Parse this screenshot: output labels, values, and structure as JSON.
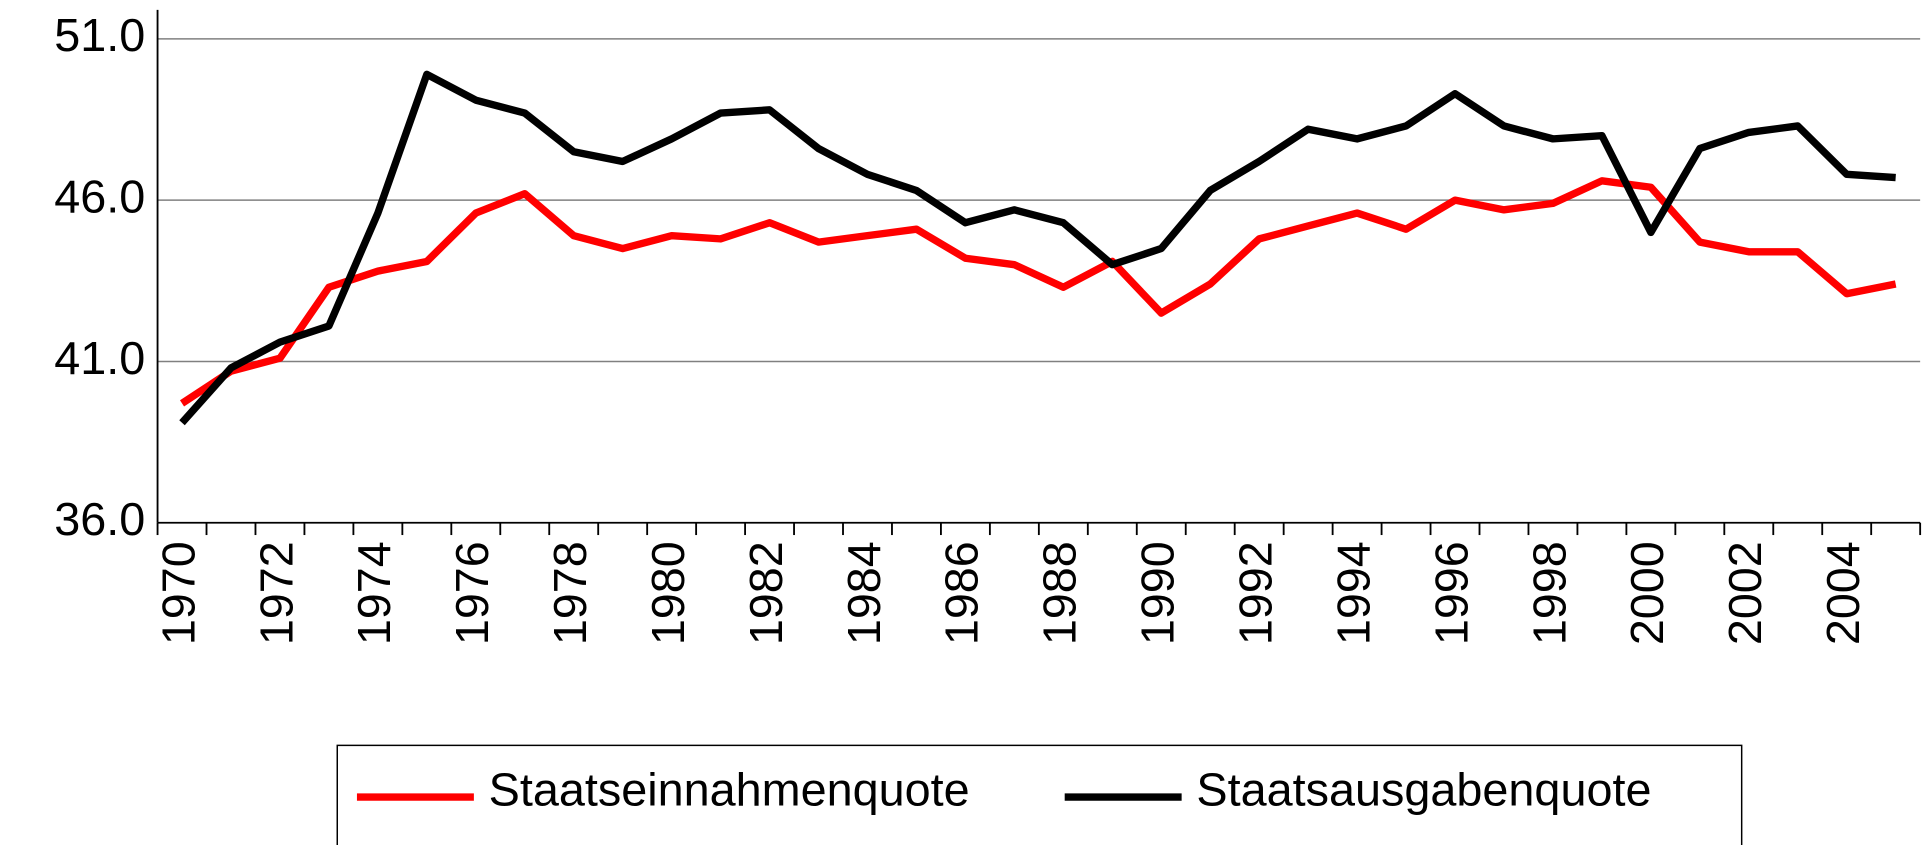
{
  "chart_data": {
    "type": "line",
    "categories": [
      "1970",
      null,
      "1972",
      null,
      "1974",
      null,
      "1976",
      null,
      "1978",
      null,
      "1980",
      null,
      "1982",
      null,
      "1984",
      null,
      "1986",
      null,
      "1988",
      null,
      "1990",
      null,
      "1992",
      null,
      "1994",
      null,
      "1996",
      null,
      "1998",
      null,
      "2000",
      null,
      "2002",
      null,
      "2004",
      null
    ],
    "series": [
      {
        "name": "Staatseinnahmenquote",
        "color": "#ff0000",
        "values": [
          39.7,
          40.7,
          41.1,
          43.3,
          43.8,
          44.1,
          45.6,
          46.2,
          44.9,
          44.5,
          44.9,
          44.8,
          45.3,
          44.7,
          44.9,
          45.1,
          44.2,
          44.0,
          43.3,
          44.1,
          42.5,
          43.4,
          44.8,
          45.2,
          45.6,
          45.1,
          46.0,
          45.7,
          45.9,
          46.6,
          46.4,
          44.7,
          44.4,
          44.4,
          43.1,
          43.4
        ]
      },
      {
        "name": "Staatsausgabenquote",
        "color": "#000000",
        "values": [
          39.1,
          40.8,
          41.6,
          42.1,
          45.6,
          49.9,
          49.1,
          48.7,
          47.5,
          47.2,
          47.9,
          48.7,
          48.8,
          47.6,
          46.8,
          46.3,
          45.3,
          45.7,
          45.3,
          44.0,
          44.5,
          46.3,
          47.2,
          48.2,
          47.9,
          48.3,
          49.3,
          48.3,
          47.9,
          48.0,
          45.0,
          47.6,
          48.1,
          48.3,
          46.8,
          46.7
        ]
      }
    ],
    "ylim": [
      36,
      51.9
    ],
    "yticks": [
      {
        "value": 36,
        "label": "36.0"
      },
      {
        "value": 41,
        "label": "41.0"
      },
      {
        "value": 46,
        "label": "46.0"
      },
      {
        "value": 51,
        "label": "51.0"
      }
    ],
    "grid": true,
    "legend": "bottom"
  }
}
